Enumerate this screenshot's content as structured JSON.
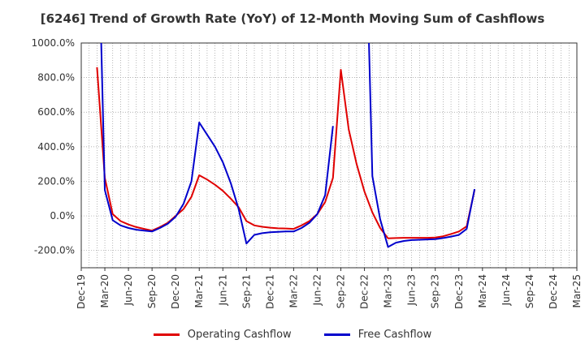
{
  "chart_data": {
    "type": "line",
    "title": "[6246]  Trend of Growth Rate (YoY) of 12-Month Moving Sum of Cashflows",
    "xlabel": "",
    "ylabel": "",
    "ylim": [
      -300,
      1000
    ],
    "yticks": [
      1000,
      800,
      600,
      400,
      200,
      0,
      -200
    ],
    "ytick_labels": [
      "1000.0%",
      "800.0%",
      "600.0%",
      "400.0%",
      "200.0%",
      "0.0%",
      "-200.0%"
    ],
    "xticks": [
      "Dec-19",
      "Mar-20",
      "Jun-20",
      "Sep-20",
      "Dec-20",
      "Mar-21",
      "Jun-21",
      "Sep-21",
      "Dec-21",
      "Mar-22",
      "Jun-22",
      "Sep-22",
      "Dec-22",
      "Mar-23",
      "Jun-23",
      "Sep-23",
      "Dec-23",
      "Mar-24",
      "Jun-24",
      "Sep-24",
      "Dec-24",
      "Mar-25"
    ],
    "grid": true,
    "legend_position": "bottom",
    "series": [
      {
        "name": "Operating Cashflow",
        "color": "#e00000",
        "points": [
          [
            "Feb-20",
            860
          ],
          [
            "Mar-20",
            220
          ],
          [
            "Apr-20",
            10
          ],
          [
            "May-20",
            -30
          ],
          [
            "Jun-20",
            -50
          ],
          [
            "Jul-20",
            -65
          ],
          [
            "Aug-20",
            -75
          ],
          [
            "Sep-20",
            -85
          ],
          [
            "Oct-20",
            -65
          ],
          [
            "Nov-20",
            -40
          ],
          [
            "Dec-20",
            0
          ],
          [
            "Jan-21",
            40
          ],
          [
            "Feb-21",
            110
          ],
          [
            "Mar-21",
            235
          ],
          [
            "Apr-21",
            210
          ],
          [
            "May-21",
            180
          ],
          [
            "Jun-21",
            145
          ],
          [
            "Jul-21",
            100
          ],
          [
            "Aug-21",
            50
          ],
          [
            "Sep-21",
            -30
          ],
          [
            "Oct-21",
            -55
          ],
          [
            "Nov-21",
            -63
          ],
          [
            "Dec-21",
            -68
          ],
          [
            "Jan-22",
            -72
          ],
          [
            "Feb-22",
            -73
          ],
          [
            "Mar-22",
            -75
          ],
          [
            "Apr-22",
            -55
          ],
          [
            "May-22",
            -30
          ],
          [
            "Jun-22",
            10
          ],
          [
            "Jul-22",
            80
          ],
          [
            "Aug-22",
            220
          ],
          [
            "Sep-22",
            845
          ],
          [
            "Oct-22",
            500
          ],
          [
            "Nov-22",
            300
          ],
          [
            "Dec-22",
            140
          ],
          [
            "Jan-23",
            20
          ],
          [
            "Feb-23",
            -70
          ],
          [
            "Mar-23",
            -130
          ],
          [
            "Apr-23",
            -128
          ],
          [
            "May-23",
            -127
          ],
          [
            "Jun-23",
            -127
          ],
          [
            "Jul-23",
            -127
          ],
          [
            "Aug-23",
            -127
          ],
          [
            "Sep-23",
            -125
          ],
          [
            "Oct-23",
            -118
          ],
          [
            "Nov-23",
            -105
          ],
          [
            "Dec-23",
            -90
          ],
          [
            "Jan-24",
            -60
          ],
          [
            "Feb-24",
            150
          ]
        ]
      },
      {
        "name": "Free Cashflow",
        "color": "#0000cc",
        "segments": [
          [
            [
              "Feb-20",
              2000
            ],
            [
              "Mar-20",
              150
            ],
            [
              "Apr-20",
              -25
            ],
            [
              "May-20",
              -55
            ],
            [
              "Jun-20",
              -70
            ],
            [
              "Jul-20",
              -80
            ],
            [
              "Aug-20",
              -85
            ],
            [
              "Sep-20",
              -90
            ],
            [
              "Oct-20",
              -70
            ],
            [
              "Nov-20",
              -45
            ],
            [
              "Dec-20",
              -5
            ],
            [
              "Jan-21",
              70
            ],
            [
              "Feb-21",
              200
            ],
            [
              "Mar-21",
              540
            ],
            [
              "Apr-21",
              470
            ],
            [
              "May-21",
              400
            ],
            [
              "Jun-21",
              310
            ],
            [
              "Jul-21",
              190
            ],
            [
              "Aug-21",
              40
            ],
            [
              "Sep-21",
              -160
            ],
            [
              "Oct-21",
              -110
            ],
            [
              "Nov-21",
              -100
            ],
            [
              "Dec-21",
              -95
            ],
            [
              "Jan-22",
              -92
            ],
            [
              "Feb-22",
              -90
            ],
            [
              "Mar-22",
              -90
            ],
            [
              "Apr-22",
              -70
            ],
            [
              "May-22",
              -40
            ],
            [
              "Jun-22",
              10
            ],
            [
              "Jul-22",
              120
            ],
            [
              "Aug-22",
              520
            ]
          ],
          [
            [
              "Dec-22",
              2000
            ],
            [
              "Jan-23",
              230
            ],
            [
              "Feb-23",
              -20
            ],
            [
              "Mar-23",
              -180
            ],
            [
              "Apr-23",
              -155
            ],
            [
              "May-23",
              -145
            ],
            [
              "Jun-23",
              -140
            ],
            [
              "Jul-23",
              -138
            ],
            [
              "Aug-23",
              -136
            ],
            [
              "Sep-23",
              -135
            ],
            [
              "Oct-23",
              -128
            ],
            [
              "Nov-23",
              -120
            ],
            [
              "Dec-23",
              -110
            ],
            [
              "Jan-24",
              -75
            ],
            [
              "Feb-24",
              155
            ]
          ]
        ]
      }
    ]
  }
}
